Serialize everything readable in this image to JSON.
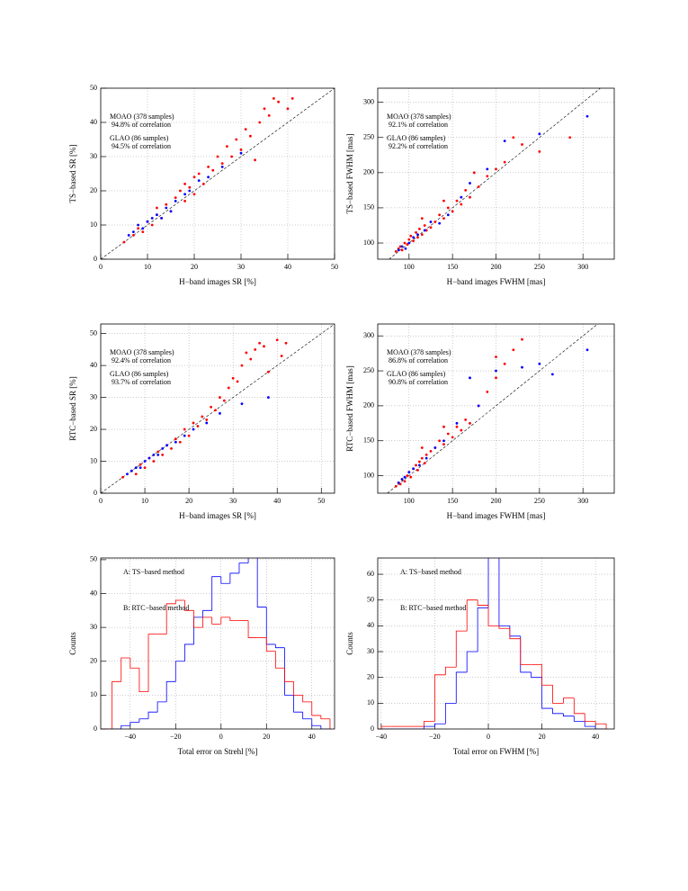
{
  "chart_data": [
    {
      "type": "scatter",
      "xlabel": "H−band images SR [%]",
      "ylabel": "TS−based SR [%]",
      "xlim": [
        0,
        50
      ],
      "ylim": [
        0,
        50
      ],
      "xticks": [
        0,
        10,
        20,
        30,
        40,
        50
      ],
      "yticks": [
        0,
        10,
        20,
        30,
        40,
        50
      ],
      "grid": true,
      "diagonal": true,
      "series": [
        {
          "name": "MOAO (378 samples)",
          "note": "94.8% of correlation",
          "color": "#ff0000",
          "x": [
            5,
            7,
            8,
            9,
            10,
            11,
            12,
            12,
            13,
            14,
            15,
            16,
            17,
            18,
            18,
            19,
            20,
            20,
            21,
            22,
            23,
            24,
            25,
            26,
            27,
            28,
            29,
            30,
            31,
            32,
            34,
            35,
            36,
            38,
            40,
            41,
            37,
            33
          ],
          "values": [
            5,
            7,
            9,
            8,
            11,
            10,
            13,
            15,
            12,
            16,
            14,
            18,
            20,
            17,
            22,
            21,
            19,
            24,
            25,
            22,
            27,
            26,
            30,
            28,
            33,
            30,
            35,
            32,
            38,
            36,
            40,
            44,
            42,
            46,
            44,
            47,
            47,
            29
          ]
        },
        {
          "name": "GLAO (86 samples)",
          "note": "94.5% of correlation",
          "color": "#0000ff",
          "x": [
            6,
            7,
            8,
            9,
            10,
            11,
            12,
            13,
            14,
            15,
            16,
            18,
            19,
            21,
            23,
            26,
            30
          ],
          "values": [
            7,
            8,
            10,
            9,
            11,
            12,
            13,
            12,
            15,
            14,
            17,
            19,
            20,
            23,
            24,
            27,
            31
          ]
        }
      ]
    },
    {
      "type": "scatter",
      "xlabel": "H−band images FWHM [mas]",
      "ylabel": "TS−based FWHM [mas]",
      "xlim": [
        64,
        336
      ],
      "ylim": [
        77,
        320
      ],
      "xticks": [
        100,
        150,
        200,
        250,
        300
      ],
      "yticks": [
        100,
        150,
        200,
        250,
        300
      ],
      "grid": true,
      "diagonal": true,
      "series": [
        {
          "name": "MOAO (378 samples)",
          "note": "92.1% of correlation",
          "color": "#ff0000",
          "x": [
            85,
            88,
            90,
            92,
            95,
            98,
            100,
            102,
            105,
            108,
            110,
            112,
            115,
            118,
            120,
            125,
            130,
            135,
            140,
            145,
            150,
            155,
            160,
            165,
            170,
            180,
            190,
            200,
            210,
            220,
            230,
            250,
            285,
            115,
            140,
            175
          ],
          "values": [
            88,
            92,
            95,
            90,
            100,
            98,
            105,
            110,
            103,
            115,
            108,
            120,
            112,
            125,
            118,
            122,
            130,
            140,
            135,
            150,
            145,
            160,
            155,
            175,
            165,
            180,
            195,
            205,
            215,
            250,
            240,
            230,
            250,
            135,
            160,
            200
          ]
        },
        {
          "name": "GLAO (86 samples)",
          "note": "92.2% of correlation",
          "color": "#0000ff",
          "x": [
            88,
            92,
            96,
            100,
            105,
            110,
            118,
            125,
            135,
            145,
            160,
            170,
            190,
            210,
            250,
            305
          ],
          "values": [
            90,
            95,
            92,
            100,
            108,
            112,
            118,
            130,
            128,
            140,
            165,
            185,
            205,
            245,
            255,
            280
          ]
        }
      ]
    },
    {
      "type": "scatter",
      "xlabel": "H−band images SR [%]",
      "ylabel": "RTC−based SR [%]",
      "xlim": [
        0,
        53
      ],
      "ylim": [
        0,
        53
      ],
      "xticks": [
        0,
        10,
        20,
        30,
        40,
        50
      ],
      "yticks": [
        0,
        10,
        20,
        30,
        40,
        50
      ],
      "grid": true,
      "diagonal": true,
      "series": [
        {
          "name": "MOAO (378 samples)",
          "note": "92.4% of correlation",
          "color": "#ff0000",
          "x": [
            5,
            7,
            8,
            9,
            10,
            11,
            12,
            13,
            14,
            15,
            16,
            17,
            18,
            19,
            20,
            21,
            22,
            23,
            24,
            25,
            26,
            27,
            28,
            29,
            30,
            31,
            32,
            33,
            34,
            35,
            36,
            37,
            38,
            40,
            41,
            42
          ],
          "values": [
            5,
            7,
            6,
            9,
            8,
            11,
            10,
            13,
            12,
            15,
            14,
            17,
            16,
            20,
            18,
            22,
            21,
            24,
            23,
            27,
            26,
            30,
            29,
            33,
            36,
            35,
            40,
            44,
            42,
            45,
            47,
            46,
            38,
            48,
            43,
            47
          ]
        },
        {
          "name": "GLAO (86 samples)",
          "note": "93.7% of correlation",
          "color": "#0000ff",
          "x": [
            6,
            7,
            8,
            9,
            10,
            11,
            12,
            13,
            14,
            15,
            17,
            19,
            21,
            24,
            27,
            32,
            38
          ],
          "values": [
            6,
            7,
            8,
            8,
            10,
            11,
            12,
            12,
            14,
            15,
            16,
            18,
            20,
            22,
            25,
            28,
            30
          ]
        }
      ]
    },
    {
      "type": "scatter",
      "xlabel": "H−band images FWHM [mas]",
      "ylabel": "RTC−based FWHM [mas]",
      "xlim": [
        64,
        336
      ],
      "ylim": [
        75,
        317
      ],
      "xticks": [
        100,
        150,
        200,
        250,
        300
      ],
      "yticks": [
        100,
        150,
        200,
        250,
        300
      ],
      "grid": true,
      "diagonal": true,
      "series": [
        {
          "name": "MOAO (378 samples)",
          "note": "86.8% of correlation",
          "color": "#ff0000",
          "x": [
            85,
            88,
            90,
            92,
            95,
            98,
            100,
            102,
            105,
            108,
            110,
            112,
            115,
            118,
            120,
            125,
            130,
            135,
            140,
            145,
            150,
            155,
            160,
            165,
            170,
            180,
            190,
            200,
            210,
            220,
            230,
            200,
            115,
            140
          ],
          "values": [
            85,
            90,
            88,
            95,
            92,
            100,
            105,
            98,
            110,
            115,
            108,
            120,
            125,
            118,
            130,
            135,
            140,
            150,
            145,
            160,
            155,
            170,
            165,
            180,
            175,
            200,
            220,
            240,
            260,
            280,
            295,
            270,
            140,
            170
          ]
        },
        {
          "name": "GLAO (86 samples)",
          "note": "90.8% of correlation",
          "color": "#0000ff",
          "x": [
            88,
            92,
            95,
            100,
            105,
            112,
            120,
            130,
            140,
            155,
            170,
            180,
            200,
            230,
            250,
            265,
            305
          ],
          "values": [
            90,
            95,
            98,
            105,
            110,
            115,
            125,
            140,
            150,
            175,
            240,
            200,
            250,
            255,
            260,
            245,
            280
          ]
        }
      ]
    },
    {
      "type": "histogram",
      "xlabel": "Total error on Strehl [%]",
      "ylabel": "Counts",
      "xlim": [
        -53,
        50
      ],
      "ylim": [
        0,
        50.5
      ],
      "xticks": [
        {
          "value": -40,
          "label": "−40"
        },
        {
          "value": -20,
          "label": "−20"
        },
        0,
        20,
        40
      ],
      "yticks": [
        0,
        10,
        20,
        30,
        40,
        50
      ],
      "grid": true,
      "bins": [
        -52,
        -48,
        -44,
        -40,
        -36,
        -32,
        -28,
        -24,
        -20,
        -16,
        -12,
        -8,
        -4,
        0,
        4,
        8,
        12,
        16,
        20,
        24,
        28,
        32,
        36,
        40,
        44,
        48
      ],
      "series": [
        {
          "name": "A: TS−based method",
          "color": "#0000ff",
          "values": [
            0,
            0,
            1,
            2,
            3,
            5,
            8,
            14,
            20,
            25,
            33,
            35,
            45,
            43,
            46,
            49,
            51,
            36,
            25,
            24,
            10,
            5,
            3,
            1,
            0
          ]
        },
        {
          "name": "B: RTC−based method",
          "color": "#ff0000",
          "values": [
            0,
            14,
            21,
            18,
            11,
            28,
            28,
            37,
            38,
            35,
            30,
            33,
            31,
            33,
            32,
            32,
            27,
            27,
            23,
            18,
            14,
            10,
            8,
            4,
            3
          ]
        }
      ]
    },
    {
      "type": "histogram",
      "xlabel": "Total error on FWHM [%]",
      "ylabel": "Counts",
      "xlim": [
        -41.3,
        47
      ],
      "ylim": [
        0,
        66.3
      ],
      "xticks": [
        {
          "value": -40,
          "label": "−40"
        },
        {
          "value": -20,
          "label": "−20"
        },
        0,
        20,
        40
      ],
      "yticks": [
        0,
        10,
        20,
        30,
        40,
        50,
        60
      ],
      "grid": true,
      "bins": [
        -40,
        -36,
        -32,
        -28,
        -24,
        -20,
        -16,
        -12,
        -8,
        -4,
        0,
        4,
        8,
        12,
        16,
        20,
        24,
        28,
        32,
        36,
        40,
        44
      ],
      "series": [
        {
          "name": "A: TS−based method",
          "color": "#0000ff",
          "values": [
            0,
            0,
            0,
            0,
            1,
            2,
            10,
            22,
            30,
            47,
            68,
            40,
            36,
            22,
            20,
            8,
            6,
            5,
            3,
            1,
            0
          ]
        },
        {
          "name": "B: RTC−based method",
          "color": "#ff0000",
          "values": [
            1,
            1,
            1,
            1,
            3,
            21,
            24,
            38,
            50,
            48,
            40,
            39,
            35,
            25,
            25,
            17,
            10,
            12,
            6,
            3,
            2
          ]
        }
      ]
    }
  ]
}
